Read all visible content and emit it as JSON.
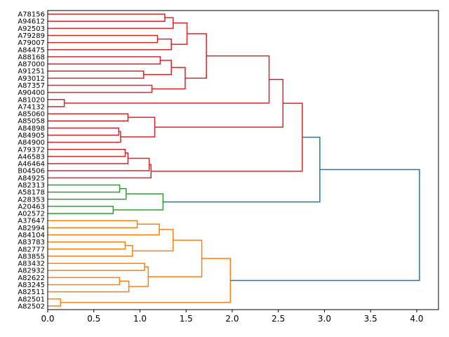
{
  "chart_data": {
    "type": "dendrogram",
    "orientation": "left",
    "title": "",
    "xlabel": "",
    "ylabel": "",
    "xlim": [
      0,
      4.236
    ],
    "x_ticks": [
      0.0,
      0.5,
      1.0,
      1.5,
      2.0,
      2.5,
      3.0,
      3.5,
      4.0
    ],
    "x_tick_labels": [
      "0.0",
      "0.5",
      "1.0",
      "1.5",
      "2.0",
      "2.5",
      "3.0",
      "3.5",
      "4.0"
    ],
    "leaves": [
      "A78156",
      "A94612",
      "A92503",
      "A79289",
      "A79007",
      "A84475",
      "A88168",
      "A87000",
      "A91251",
      "A93012",
      "A87357",
      "A90400",
      "A81020",
      "A74132",
      "A85060",
      "A85058",
      "A84898",
      "A84905",
      "A84900",
      "A79372",
      "A46583",
      "A46464",
      "B04506",
      "A84925",
      "A82313",
      "A58178",
      "A28353",
      "A20463",
      "A02572",
      "A37647",
      "A82994",
      "A84104",
      "A83783",
      "A82777",
      "A83855",
      "A83432",
      "A82932",
      "A82622",
      "A83245",
      "A82511",
      "A82501",
      "A82502"
    ],
    "colors": {
      "red": "#d62728",
      "green": "#2ca02c",
      "orange": "#ff7f0e",
      "blue": "#1f77b4"
    },
    "tree": {
      "h": 4.03,
      "c": "blue",
      "ch": [
        {
          "h": 2.95,
          "c": "blue",
          "ch": [
            {
              "h": 2.76,
              "c": "red",
              "ch": [
                {
                  "h": 2.55,
                  "c": "red",
                  "ch": [
                    {
                      "h": 2.4,
                      "c": "red",
                      "ch": [
                        {
                          "h": 1.72,
                          "c": "red",
                          "ch": [
                            {
                              "h": 1.51,
                              "c": "red",
                              "ch": [
                                {
                                  "h": 1.36,
                                  "c": "red",
                                  "ch": [
                                    {
                                      "h": 1.27,
                                      "c": "red",
                                      "ch": [
                                        {
                                          "leaf": "A78156"
                                        },
                                        {
                                          "leaf": "A94612"
                                        }
                                      ]
                                    },
                                    {
                                      "leaf": "A92503"
                                    }
                                  ]
                                },
                                {
                                  "h": 1.34,
                                  "c": "red",
                                  "ch": [
                                    {
                                      "h": 1.19,
                                      "c": "red",
                                      "ch": [
                                        {
                                          "leaf": "A79289"
                                        },
                                        {
                                          "leaf": "A79007"
                                        }
                                      ]
                                    },
                                    {
                                      "leaf": "A84475"
                                    }
                                  ]
                                }
                              ]
                            },
                            {
                              "h": 1.49,
                              "c": "red",
                              "ch": [
                                {
                                  "h": 1.34,
                                  "c": "red",
                                  "ch": [
                                    {
                                      "h": 1.22,
                                      "c": "red",
                                      "ch": [
                                        {
                                          "leaf": "A88168"
                                        },
                                        {
                                          "leaf": "A87000"
                                        }
                                      ]
                                    },
                                    {
                                      "h": 1.04,
                                      "c": "red",
                                      "ch": [
                                        {
                                          "leaf": "A91251"
                                        },
                                        {
                                          "leaf": "A93012"
                                        }
                                      ]
                                    }
                                  ]
                                },
                                {
                                  "h": 1.13,
                                  "c": "red",
                                  "ch": [
                                    {
                                      "leaf": "A87357"
                                    },
                                    {
                                      "leaf": "A90400"
                                    }
                                  ]
                                }
                              ]
                            }
                          ]
                        },
                        {
                          "h": 0.18,
                          "c": "red",
                          "ch": [
                            {
                              "leaf": "A81020"
                            },
                            {
                              "leaf": "A74132"
                            }
                          ]
                        }
                      ]
                    },
                    {
                      "h": 1.16,
                      "c": "red",
                      "ch": [
                        {
                          "h": 0.87,
                          "c": "red",
                          "ch": [
                            {
                              "leaf": "A85060"
                            },
                            {
                              "leaf": "A85058"
                            }
                          ]
                        },
                        {
                          "h": 0.79,
                          "c": "red",
                          "ch": [
                            {
                              "h": 0.77,
                              "c": "red",
                              "ch": [
                                {
                                  "leaf": "A84898"
                                },
                                {
                                  "leaf": "A84905"
                                }
                              ]
                            },
                            {
                              "leaf": "A84900"
                            }
                          ]
                        }
                      ]
                    }
                  ]
                },
                {
                  "h": 1.12,
                  "c": "red",
                  "ch": [
                    {
                      "h": 1.1,
                      "c": "red",
                      "ch": [
                        {
                          "h": 0.87,
                          "c": "red",
                          "ch": [
                            {
                              "h": 0.84,
                              "c": "red",
                              "ch": [
                                {
                                  "leaf": "A79372"
                                },
                                {
                                  "leaf": "A46583"
                                }
                              ]
                            },
                            {
                              "leaf": "A46464"
                            }
                          ]
                        },
                        {
                          "leaf": "B04506"
                        }
                      ]
                    },
                    {
                      "leaf": "A84925"
                    }
                  ]
                }
              ]
            },
            {
              "h": 1.25,
              "c": "green",
              "ch": [
                {
                  "h": 0.85,
                  "c": "green",
                  "ch": [
                    {
                      "h": 0.78,
                      "c": "green",
                      "ch": [
                        {
                          "leaf": "A82313"
                        },
                        {
                          "leaf": "A58178"
                        }
                      ]
                    },
                    {
                      "leaf": "A28353"
                    }
                  ]
                },
                {
                  "h": 0.71,
                  "c": "green",
                  "ch": [
                    {
                      "leaf": "A20463"
                    },
                    {
                      "leaf": "A02572"
                    }
                  ]
                }
              ]
            }
          ]
        },
        {
          "h": 1.98,
          "c": "orange",
          "ch": [
            {
              "h": 1.67,
              "c": "orange",
              "ch": [
                {
                  "h": 1.36,
                  "c": "orange",
                  "ch": [
                    {
                      "h": 1.21,
                      "c": "orange",
                      "ch": [
                        {
                          "h": 0.97,
                          "c": "orange",
                          "ch": [
                            {
                              "leaf": "A37647"
                            },
                            {
                              "leaf": "A82994"
                            }
                          ]
                        },
                        {
                          "leaf": "A84104"
                        }
                      ]
                    },
                    {
                      "h": 0.92,
                      "c": "orange",
                      "ch": [
                        {
                          "h": 0.84,
                          "c": "orange",
                          "ch": [
                            {
                              "leaf": "A83783"
                            },
                            {
                              "leaf": "A82777"
                            }
                          ]
                        },
                        {
                          "leaf": "A83855"
                        }
                      ]
                    }
                  ]
                },
                {
                  "h": 1.09,
                  "c": "orange",
                  "ch": [
                    {
                      "h": 1.05,
                      "c": "orange",
                      "ch": [
                        {
                          "leaf": "A83432"
                        },
                        {
                          "leaf": "A82932"
                        }
                      ]
                    },
                    {
                      "h": 0.88,
                      "c": "orange",
                      "ch": [
                        {
                          "h": 0.78,
                          "c": "orange",
                          "ch": [
                            {
                              "leaf": "A82622"
                            },
                            {
                              "leaf": "A83245"
                            }
                          ]
                        },
                        {
                          "leaf": "A82511"
                        }
                      ]
                    }
                  ]
                }
              ]
            },
            {
              "h": 0.14,
              "c": "orange",
              "ch": [
                {
                  "leaf": "A82501"
                },
                {
                  "leaf": "A82502"
                }
              ]
            }
          ]
        }
      ]
    }
  }
}
